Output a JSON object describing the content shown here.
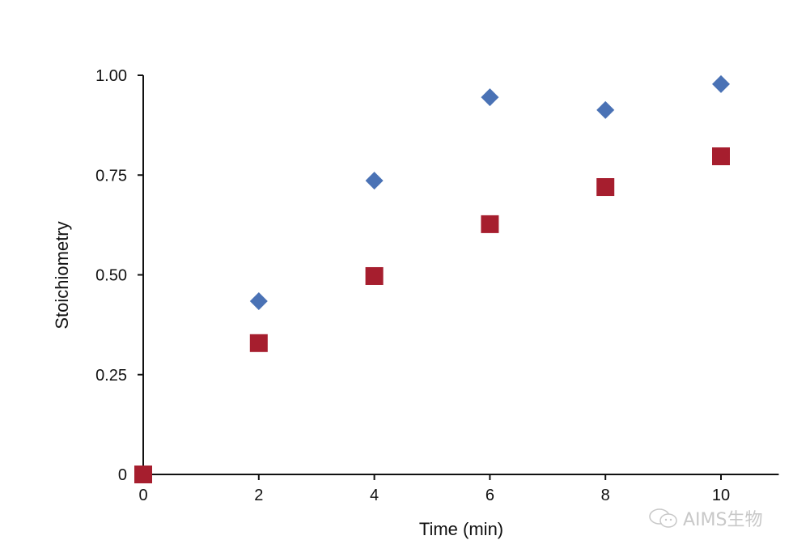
{
  "chart_data": {
    "type": "scatter",
    "title": "",
    "xlabel": "Time (min)",
    "ylabel": "Stoichiometry",
    "xlim": [
      0,
      11
    ],
    "ylim": [
      0,
      1.0
    ],
    "xticks": [
      0,
      2,
      4,
      6,
      8,
      10
    ],
    "xtick_labels": [
      "0",
      "2",
      "4",
      "6",
      "8",
      "10"
    ],
    "yticks": [
      0,
      0.25,
      0.5,
      0.75,
      1.0
    ],
    "ytick_labels": [
      "0",
      "0.25",
      "0.50",
      "0.75",
      "1.00"
    ],
    "grid": false,
    "series": [
      {
        "name": "diamond series",
        "marker": "diamond",
        "color": "#4a72b5",
        "x": [
          0,
          2,
          4,
          6,
          8,
          10
        ],
        "y": [
          0,
          0.434,
          0.736,
          0.945,
          0.913,
          0.978
        ]
      },
      {
        "name": "square series",
        "marker": "square",
        "color": "#a61e2e",
        "x": [
          0,
          2,
          4,
          6,
          8,
          10
        ],
        "y": [
          0,
          0.329,
          0.497,
          0.627,
          0.72,
          0.797
        ]
      }
    ]
  },
  "watermark": {
    "text": "AIMS生物",
    "icon": "wechat-icon"
  }
}
